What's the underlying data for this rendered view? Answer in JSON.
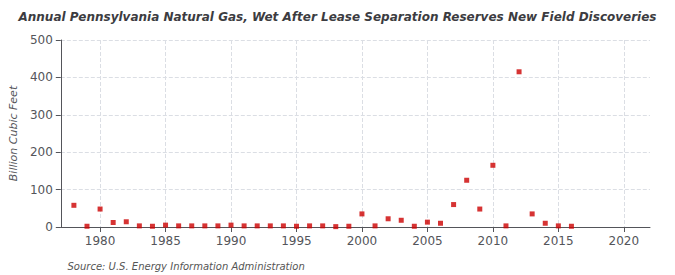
{
  "chart_data": {
    "type": "scatter",
    "title": "Annual Pennsylvania Natural Gas, Wet After Lease Separation Reserves New Field Discoveries",
    "ylabel": "Billion Cubic Feet",
    "annotations": [
      "Source: U.S. Energy Information Administration"
    ],
    "x": [
      1978,
      1979,
      1980,
      1981,
      1982,
      1983,
      1984,
      1985,
      1986,
      1987,
      1988,
      1989,
      1990,
      1991,
      1992,
      1993,
      1994,
      1995,
      1996,
      1997,
      1998,
      1999,
      2000,
      2001,
      2002,
      2003,
      2004,
      2005,
      2006,
      2007,
      2008,
      2009,
      2010,
      2011,
      2012,
      2013,
      2014,
      2015,
      2016
    ],
    "values": [
      58,
      2,
      48,
      12,
      14,
      3,
      2,
      5,
      3,
      3,
      3,
      3,
      5,
      3,
      3,
      3,
      3,
      2,
      3,
      3,
      1,
      2,
      35,
      3,
      22,
      18,
      2,
      13,
      10,
      60,
      125,
      48,
      165,
      3,
      415,
      35,
      10,
      3,
      2
    ],
    "color": "#cc0000",
    "marker": "square",
    "xlim": [
      1977,
      2022
    ],
    "xticks": [
      1980,
      1985,
      1990,
      1995,
      2000,
      2005,
      2010,
      2015,
      2020
    ],
    "ylim": [
      0,
      500
    ],
    "yticks": [
      0,
      100,
      200,
      300,
      400,
      500
    ],
    "grid": true
  }
}
